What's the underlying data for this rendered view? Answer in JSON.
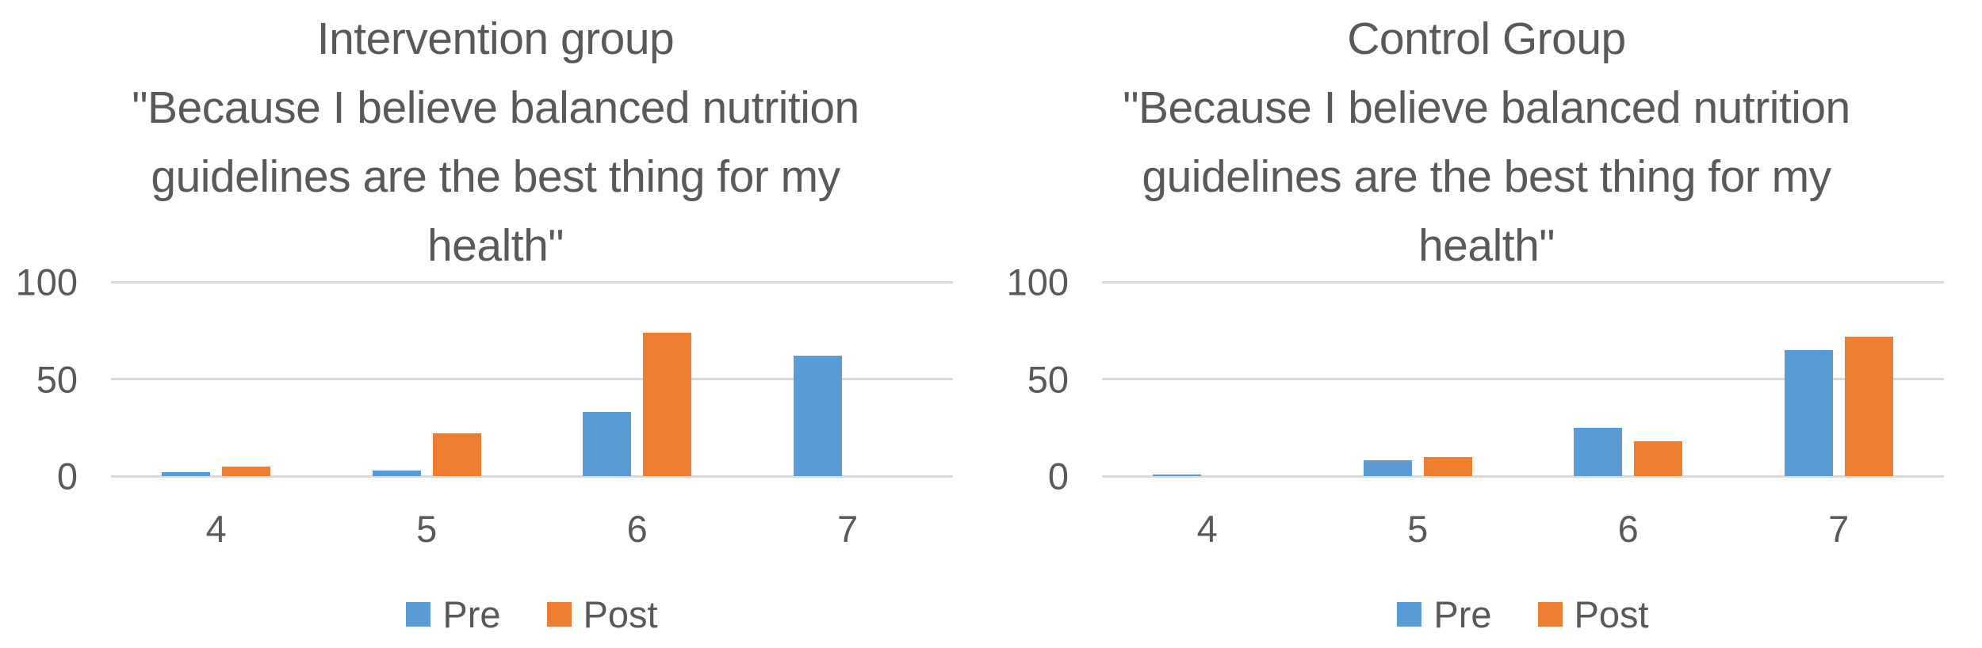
{
  "figure": {
    "background": "#ffffff",
    "text_color": "#595959",
    "gridline_color": "#d9d9d9"
  },
  "chart_data": [
    {
      "type": "bar",
      "title": "Intervention group",
      "subtitle_lines": [
        "\"Because I believe balanced nutrition",
        "guidelines are the best thing for my",
        "health\""
      ],
      "categories": [
        "4",
        "5",
        "6",
        "7"
      ],
      "series": [
        {
          "name": "Pre",
          "color": "#5B9BD5",
          "values": [
            2,
            3,
            33,
            62
          ]
        },
        {
          "name": "Post",
          "color": "#ED7D31",
          "values": [
            5,
            22,
            74,
            0
          ]
        }
      ],
      "ylim": [
        0,
        100
      ],
      "yticks": [
        0,
        50,
        100
      ],
      "grid": true,
      "legend_position": "bottom"
    },
    {
      "type": "bar",
      "title": "Control Group",
      "subtitle_lines": [
        "\"Because I believe balanced nutrition",
        "guidelines are the best thing for my",
        "health\""
      ],
      "categories": [
        "4",
        "5",
        "6",
        "7"
      ],
      "series": [
        {
          "name": "Pre",
          "color": "#5B9BD5",
          "values": [
            1,
            8,
            25,
            65
          ]
        },
        {
          "name": "Post",
          "color": "#ED7D31",
          "values": [
            0,
            10,
            18,
            72
          ]
        }
      ],
      "ylim": [
        0,
        100
      ],
      "yticks": [
        0,
        50,
        100
      ],
      "grid": true,
      "legend_position": "bottom"
    }
  ]
}
